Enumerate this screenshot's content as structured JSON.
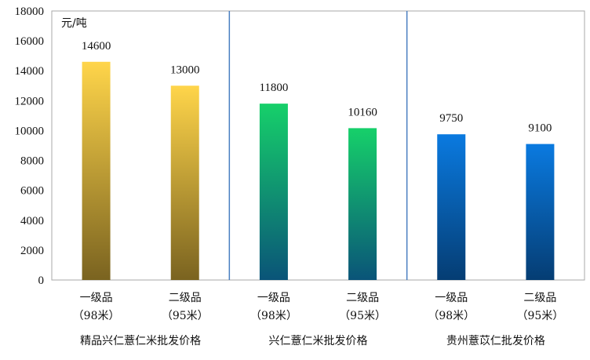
{
  "chart_data": {
    "type": "bar",
    "unit_label": "元/吨",
    "ylim": [
      0,
      18000
    ],
    "yticks": [
      0,
      2000,
      4000,
      6000,
      8000,
      10000,
      12000,
      14000,
      16000,
      18000
    ],
    "grid": false,
    "groups": [
      {
        "name": "精品兴仁薏仁米批发价格",
        "colors": [
          "#ffd54a",
          "#7a6320"
        ],
        "bars": [
          {
            "category_line1": "一级品",
            "category_line2": "（98米）",
            "value": 14600
          },
          {
            "category_line1": "二级品",
            "category_line2": "（95米）",
            "value": 13000
          }
        ]
      },
      {
        "name": "兴仁薏仁米批发价格",
        "colors": [
          "#16d06a",
          "#0a5478"
        ],
        "bars": [
          {
            "category_line1": "一级品",
            "category_line2": "（98米）",
            "value": 11800
          },
          {
            "category_line1": "二级品",
            "category_line2": "（95米）",
            "value": 10160
          }
        ]
      },
      {
        "name": "贵州薏苡仁批发价格",
        "colors": [
          "#0a7ae0",
          "#053d73"
        ],
        "bars": [
          {
            "category_line1": "一级品",
            "category_line2": "（98米）",
            "value": 9750
          },
          {
            "category_line1": "二级品",
            "category_line2": "（95米）",
            "value": 9100
          }
        ]
      }
    ]
  }
}
